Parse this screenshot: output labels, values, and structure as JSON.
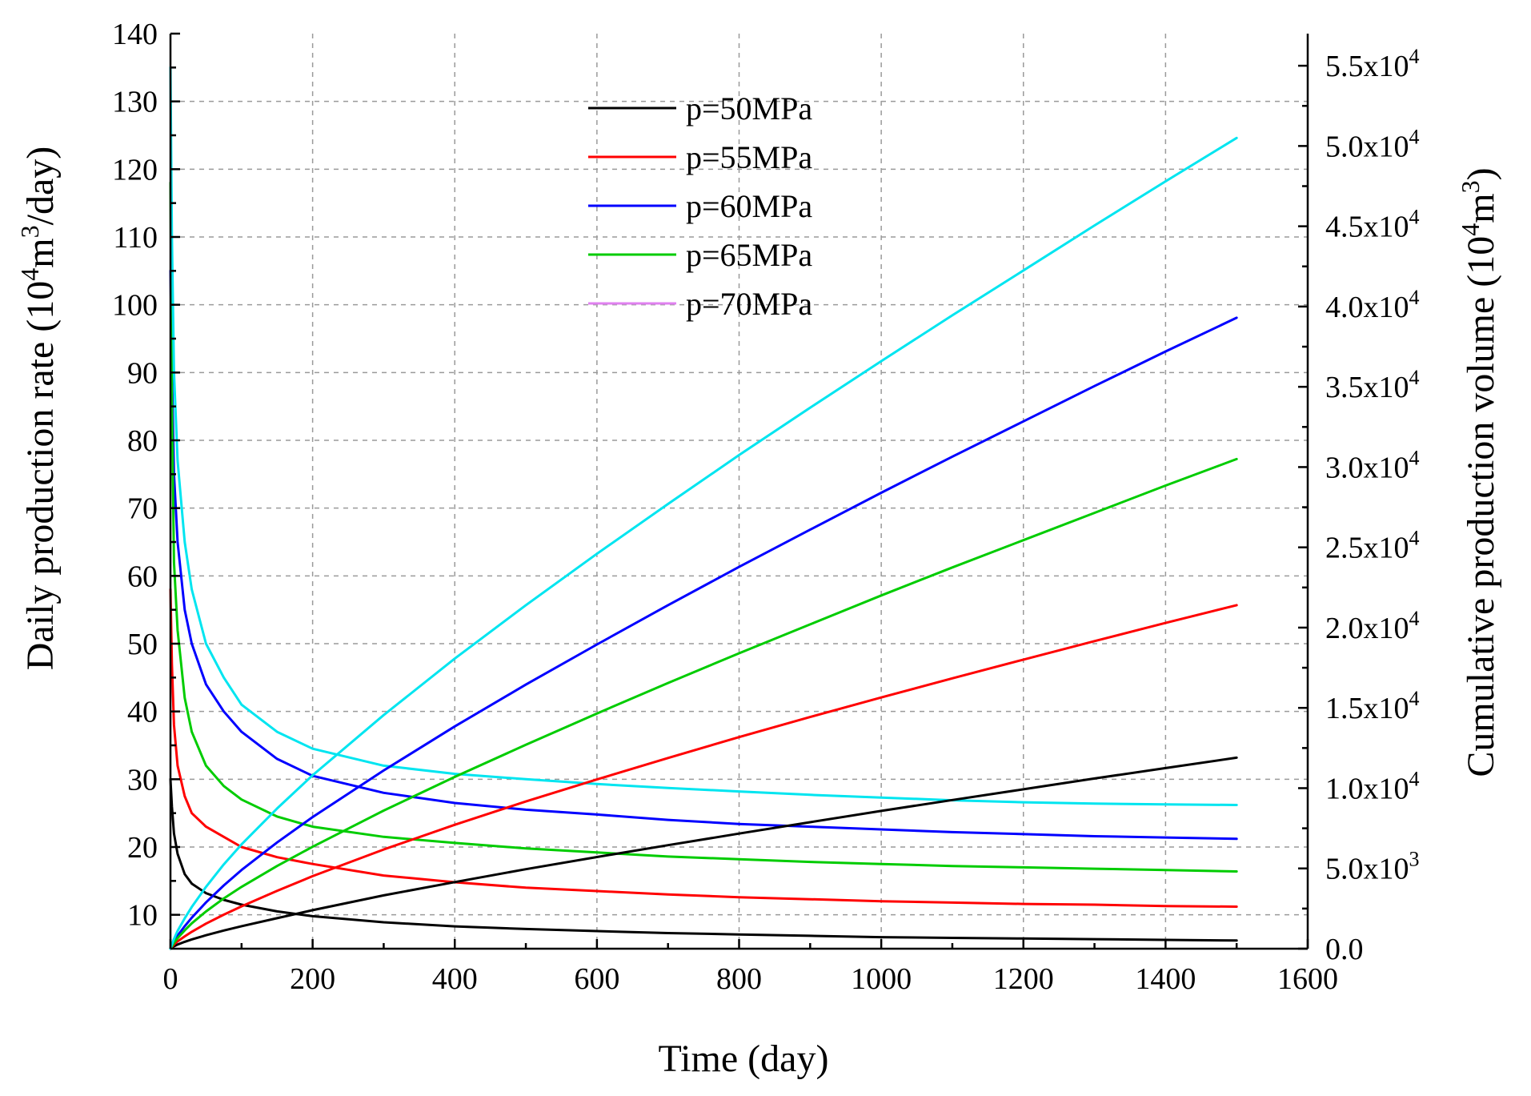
{
  "chart_data": {
    "type": "line",
    "title": "",
    "xlabel": "Time (day)",
    "ylabel_left": {
      "before": "Daily production rate (10",
      "sup1": "4",
      "mid": "m",
      "sup2": "3",
      "after": "/day)"
    },
    "ylabel_right": {
      "before": "Cumulative production volume (10",
      "sup1": "4",
      "mid": "m",
      "sup2": "3",
      "after": ")"
    },
    "xlim": [
      0,
      1600
    ],
    "ylim_left": [
      5,
      140
    ],
    "ylim_right": [
      0,
      57000
    ],
    "x_ticks": [
      "0",
      "200",
      "400",
      "600",
      "800",
      "1000",
      "1200",
      "1400",
      "1600"
    ],
    "x_tick_values": [
      0,
      200,
      400,
      600,
      800,
      1000,
      1200,
      1400,
      1600
    ],
    "y_left_ticks": [
      "10",
      "20",
      "30",
      "40",
      "50",
      "60",
      "70",
      "80",
      "90",
      "100",
      "110",
      "120",
      "130",
      "140"
    ],
    "y_left_tick_values": [
      10,
      20,
      30,
      40,
      50,
      60,
      70,
      80,
      90,
      100,
      110,
      120,
      130,
      140
    ],
    "y_right_ticks": [
      {
        "value": 0,
        "mant": "0.0",
        "exp": ""
      },
      {
        "value": 5000,
        "mant": "5.0x10",
        "exp": "3"
      },
      {
        "value": 10000,
        "mant": "1.0x10",
        "exp": "4"
      },
      {
        "value": 15000,
        "mant": "1.5x10",
        "exp": "4"
      },
      {
        "value": 20000,
        "mant": "2.0x10",
        "exp": "4"
      },
      {
        "value": 25000,
        "mant": "2.5x10",
        "exp": "4"
      },
      {
        "value": 30000,
        "mant": "3.0x10",
        "exp": "4"
      },
      {
        "value": 35000,
        "mant": "3.5x10",
        "exp": "4"
      },
      {
        "value": 40000,
        "mant": "4.0x10",
        "exp": "4"
      },
      {
        "value": 45000,
        "mant": "4.5x10",
        "exp": "4"
      },
      {
        "value": 50000,
        "mant": "5.0x10",
        "exp": "4"
      },
      {
        "value": 55000,
        "mant": "5.5x10",
        "exp": "4"
      }
    ],
    "grid": true,
    "legend_position": "top-center",
    "x": [
      0,
      2,
      5,
      10,
      20,
      30,
      50,
      75,
      100,
      150,
      200,
      300,
      400,
      500,
      600,
      700,
      800,
      900,
      1000,
      1100,
      1200,
      1300,
      1400,
      1500
    ],
    "legend": [
      {
        "name": "p=50MPa",
        "color": "#000000"
      },
      {
        "name": "p=55MPa",
        "color": "#ff0000"
      },
      {
        "name": "p=60MPa",
        "color": "#0000ff"
      },
      {
        "name": "p=65MPa",
        "color": "#00cc00"
      },
      {
        "name": "p=70MPa",
        "color": "#e080f0"
      }
    ],
    "series": [
      {
        "name": "p=50MPa daily rate",
        "axis": "left",
        "color": "#000000",
        "values": [
          30,
          26,
          22,
          19,
          16,
          14.6,
          13.2,
          12.2,
          11.5,
          10.5,
          9.8,
          8.9,
          8.3,
          7.9,
          7.6,
          7.3,
          7.1,
          6.9,
          6.7,
          6.6,
          6.5,
          6.4,
          6.3,
          6.2
        ]
      },
      {
        "name": "p=55MPa daily rate",
        "axis": "left",
        "color": "#ff0000",
        "values": [
          58,
          47,
          38,
          32,
          27.5,
          25,
          23,
          21.5,
          20,
          18.5,
          17.5,
          15.8,
          14.8,
          14,
          13.5,
          13,
          12.6,
          12.3,
          12,
          11.8,
          11.6,
          11.5,
          11.3,
          11.2
        ]
      },
      {
        "name": "p=60MPa daily rate",
        "axis": "left",
        "color": "#0000ff",
        "values": [
          105,
          90,
          75,
          65,
          55,
          50,
          44,
          40,
          37,
          33,
          30.5,
          28,
          26.5,
          25.5,
          24.8,
          24,
          23.4,
          23,
          22.6,
          22.2,
          21.9,
          21.6,
          21.4,
          21.2
        ]
      },
      {
        "name": "p=65MPa daily rate",
        "axis": "left",
        "color": "#00cc00",
        "values": [
          118,
          85,
          62,
          52,
          42,
          37,
          32,
          29,
          27,
          24.5,
          23,
          21.5,
          20.6,
          19.8,
          19.2,
          18.6,
          18.2,
          17.8,
          17.5,
          17.2,
          17,
          16.8,
          16.6,
          16.4
        ]
      },
      {
        "name": "p=70MPa daily rate",
        "axis": "left",
        "color": "#00e5f0",
        "values": [
          135,
          110,
          90,
          77,
          65,
          58,
          50,
          45,
          41,
          37,
          34.5,
          32,
          30.8,
          30,
          29.3,
          28.7,
          28.2,
          27.7,
          27.3,
          26.9,
          26.6,
          26.4,
          26.3,
          26.2
        ]
      },
      {
        "name": "p=50MPa cumulative",
        "axis": "right",
        "color": "#000000",
        "values": [
          0,
          70,
          150,
          260,
          430,
          580,
          840,
          1130,
          1400,
          1900,
          2400,
          3320,
          4150,
          4950,
          5710,
          6450,
          7170,
          7880,
          8580,
          9260,
          9930,
          10600,
          11250,
          11900
        ]
      },
      {
        "name": "p=55MPa cumulative",
        "axis": "right",
        "color": "#ff0000",
        "values": [
          0,
          110,
          260,
          460,
          770,
          1050,
          1560,
          2120,
          2640,
          3600,
          4520,
          6180,
          7720,
          9170,
          10540,
          11880,
          13180,
          14430,
          15650,
          16840,
          18010,
          19160,
          20290,
          21400
        ]
      },
      {
        "name": "p=60MPa cumulative",
        "axis": "right",
        "color": "#0000ff",
        "values": [
          0,
          190,
          440,
          810,
          1400,
          1930,
          2880,
          3940,
          4900,
          6620,
          8200,
          11100,
          13850,
          16450,
          18950,
          21400,
          23780,
          26100,
          28400,
          30650,
          32850,
          35050,
          37200,
          39300
        ]
      },
      {
        "name": "p=65MPa cumulative",
        "axis": "right",
        "color": "#00cc00",
        "values": [
          0,
          150,
          370,
          660,
          1140,
          1580,
          2320,
          3130,
          3850,
          5150,
          6350,
          8600,
          10700,
          12700,
          14650,
          16550,
          18400,
          20200,
          22000,
          23750,
          25450,
          27150,
          28850,
          30500
        ]
      },
      {
        "name": "p=70MPa cumulative",
        "axis": "right",
        "color": "#00e5f0",
        "values": [
          0,
          260,
          610,
          1110,
          1890,
          2600,
          3850,
          5250,
          6500,
          8730,
          10800,
          14550,
          18070,
          21400,
          24600,
          27700,
          30750,
          33700,
          36600,
          39450,
          42250,
          45050,
          47800,
          50500
        ]
      }
    ]
  }
}
